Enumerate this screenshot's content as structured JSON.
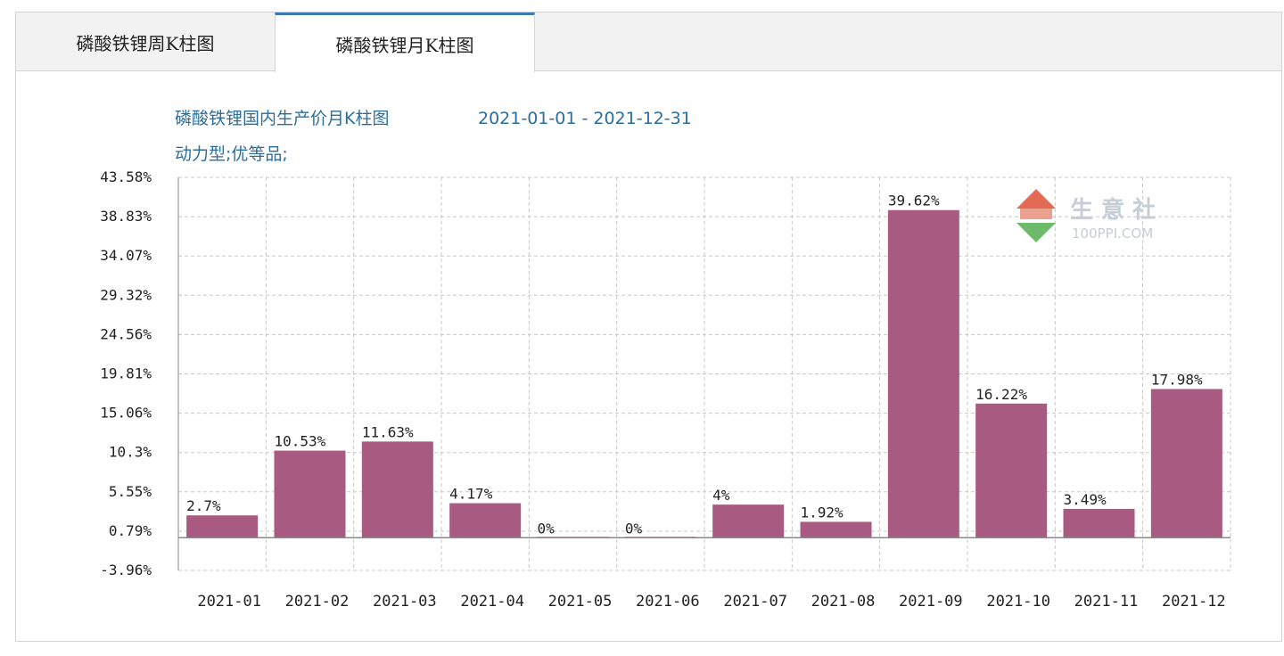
{
  "tabs": [
    {
      "label": "磷酸铁锂周K柱图",
      "active": false
    },
    {
      "label": "磷酸铁锂月K柱图",
      "active": true
    }
  ],
  "chart_data": {
    "type": "bar",
    "title": "磷酸铁锂国内生产价月K柱图",
    "date_range": "2021-01-01 - 2021-12-31",
    "subtitle": "动力型;优等品;",
    "categories": [
      "2021-01",
      "2021-02",
      "2021-03",
      "2021-04",
      "2021-05",
      "2021-06",
      "2021-07",
      "2021-08",
      "2021-09",
      "2021-10",
      "2021-11",
      "2021-12"
    ],
    "values": [
      2.7,
      10.53,
      11.63,
      4.17,
      0,
      0,
      4,
      1.92,
      39.62,
      16.22,
      3.49,
      17.98
    ],
    "value_labels": [
      "2.7%",
      "10.53%",
      "11.63%",
      "4.17%",
      "0%",
      "0%",
      "4%",
      "1.92%",
      "39.62%",
      "16.22%",
      "3.49%",
      "17.98%"
    ],
    "y_ticks": [
      43.58,
      38.83,
      34.07,
      29.32,
      24.56,
      19.81,
      15.06,
      10.3,
      5.55,
      0.79,
      -3.96
    ],
    "y_tick_labels": [
      "43.58%",
      "38.83%",
      "34.07%",
      "29.32%",
      "24.56%",
      "19.81%",
      "15.06%",
      "10.3%",
      "5.55%",
      "0.79%",
      "-3.96%"
    ],
    "ylim": [
      -3.96,
      43.58
    ],
    "grid": true,
    "bar_color": "#a85a80",
    "grid_color": "#c8c8c8"
  },
  "watermark": {
    "name": "生 意 社",
    "site": "100PPI.COM"
  }
}
